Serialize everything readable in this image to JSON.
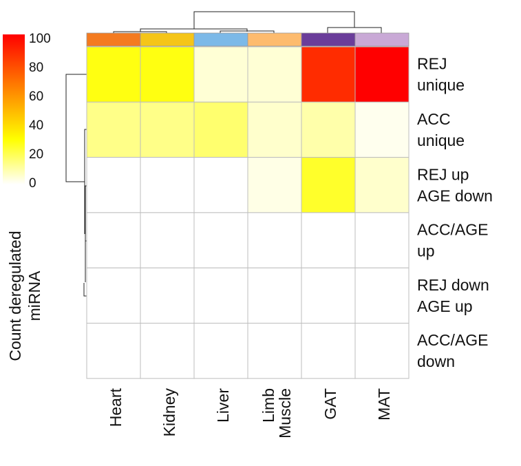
{
  "chart_data": {
    "type": "heatmap",
    "columns": [
      "Heart",
      "Kidney",
      "Liver",
      "Limb\nMuscle",
      "GAT",
      "MAT"
    ],
    "column_colors": [
      "#f47b20",
      "#f5c518",
      "#7cb9e8",
      "#fdbb6e",
      "#6a3d9a",
      "#c9a9d6"
    ],
    "rows": [
      "REJ\nunique",
      "ACC\nunique",
      "REJ up\nAGE down",
      "ACC/AGE\nup",
      "REJ down\nAGE up",
      "ACC/AGE\ndown"
    ],
    "values": [
      [
        28,
        28,
        5,
        5,
        88,
        100
      ],
      [
        14,
        14,
        17,
        6,
        10,
        2
      ],
      [
        0,
        0,
        0,
        3,
        25,
        6
      ],
      [
        0,
        0,
        0,
        0,
        0,
        0
      ],
      [
        0,
        0,
        0,
        0,
        0,
        0
      ],
      [
        0,
        0,
        0,
        0,
        0,
        0
      ]
    ],
    "colorbar": {
      "label": "Count deregulated\nmiRNA",
      "min": 0,
      "max": 100,
      "ticks": [
        0,
        20,
        40,
        60,
        80,
        100
      ],
      "colors": [
        "#ffffff",
        "#ffff00",
        "#ff0000"
      ]
    },
    "row_dendrogram": true,
    "column_dendrogram": true
  }
}
